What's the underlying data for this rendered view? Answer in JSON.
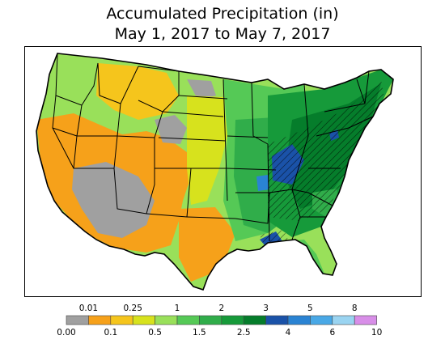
{
  "title_line1": "Accumulated Precipitation (in)",
  "title_line2": "May 1, 2017 to May 7, 2017",
  "legend": {
    "bins": [
      {
        "from": "0.00",
        "to": "0.01",
        "color": "#a0a0a0"
      },
      {
        "from": "0.01",
        "to": "0.1",
        "color": "#f6a11a"
      },
      {
        "from": "0.1",
        "to": "0.25",
        "color": "#f5c51c"
      },
      {
        "from": "0.25",
        "to": "0.5",
        "color": "#d7e21d"
      },
      {
        "from": "0.5",
        "to": "1",
        "color": "#99e05a"
      },
      {
        "from": "1",
        "to": "1.5",
        "color": "#55c956"
      },
      {
        "from": "1.5",
        "to": "2",
        "color": "#30ad4a"
      },
      {
        "from": "2",
        "to": "2.5",
        "color": "#169a3a"
      },
      {
        "from": "2.5",
        "to": "3",
        "color": "#057d2b"
      },
      {
        "from": "3",
        "to": "4",
        "color": "#1a52a8"
      },
      {
        "from": "4",
        "to": "5",
        "color": "#2a83d3"
      },
      {
        "from": "5",
        "to": "6",
        "color": "#49a8e6"
      },
      {
        "from": "6",
        "to": "8",
        "color": "#9ad4f1"
      },
      {
        "from": "8",
        "to": "10",
        "color": "#d88ee8"
      }
    ],
    "labels_top": [
      "0.01",
      "0.25",
      "1",
      "2",
      "3",
      "5",
      "8"
    ],
    "labels_bottom": [
      "0.00",
      "0.1",
      "0.5",
      "1.5",
      "2.5",
      "4",
      "6",
      "10"
    ]
  }
}
